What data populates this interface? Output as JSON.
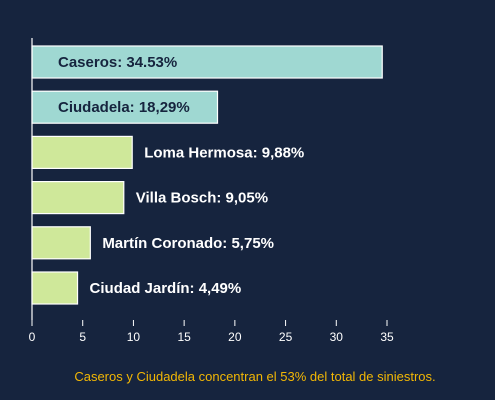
{
  "chart_data": {
    "type": "bar",
    "orientation": "horizontal",
    "categories": [
      "Caseros",
      "Ciudadela",
      "Loma Hermosa",
      "Villa Bosch",
      "Martín Coronado",
      "Ciudad Jardín"
    ],
    "values": [
      34.53,
      18.29,
      9.88,
      9.05,
      5.75,
      4.49
    ],
    "labels": [
      "Caseros: 34.53%",
      "Ciudadela: 18,29%",
      "Loma Hermosa: 9,88%",
      "Villa Bosch: 9,05%",
      "Martín Coronado: 5,75%",
      "Ciudad Jardín: 4,49%"
    ],
    "colors": [
      "#9fd8d2",
      "#9fd8d2",
      "#cfe89a",
      "#cfe89a",
      "#cfe89a",
      "#cfe89a"
    ],
    "xlim": [
      0,
      35
    ],
    "xticks": [
      0,
      5,
      10,
      15,
      20,
      25,
      30,
      35
    ],
    "grid": false,
    "title": "",
    "xlabel": "",
    "ylabel": ""
  },
  "footer": {
    "caption": "Caseros y Ciudadela concentran el 53% del total de siniestros."
  },
  "colors": {
    "background": "#16243e",
    "axis": "#ffffff",
    "caption": "#f2b705",
    "label_inside": "#16243e",
    "label_outside": "#ffffff"
  }
}
